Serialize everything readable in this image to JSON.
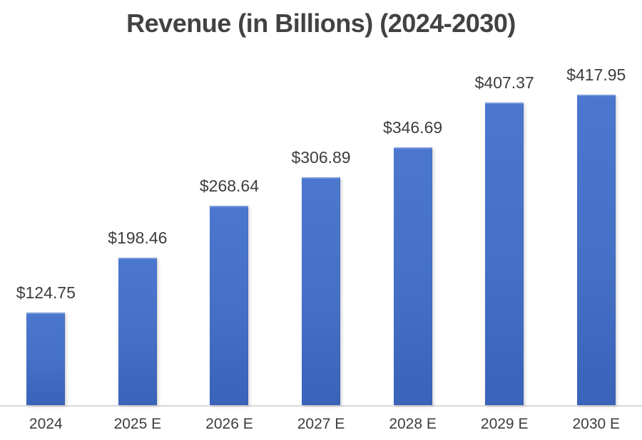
{
  "chart_data": {
    "type": "bar",
    "title": "Revenue (in Billions) (2024-2030)",
    "categories": [
      "2024",
      "2025 E",
      "2026 E",
      "2027 E",
      "2028 E",
      "2029 E",
      "2030 E"
    ],
    "values": [
      124.75,
      198.46,
      268.64,
      306.89,
      346.69,
      407.37,
      417.95
    ],
    "value_labels": [
      "$124.75",
      "$198.46",
      "$268.64",
      "$306.89",
      "$346.69",
      "$407.37",
      "$417.95"
    ],
    "xlabel": "",
    "ylabel": "",
    "ylim": [
      0,
      440
    ],
    "grid": false,
    "legend": false,
    "y_axis_visible": false,
    "colors": {
      "bar_gradient_top": "#4b77cf",
      "bar_gradient_mid": "#4470c6",
      "bar_gradient_bottom": "#3a63ba",
      "axis_line": "#d9d9d9",
      "title_text": "#424242",
      "label_text": "#3d3d3d",
      "background": "#ffffff"
    }
  }
}
